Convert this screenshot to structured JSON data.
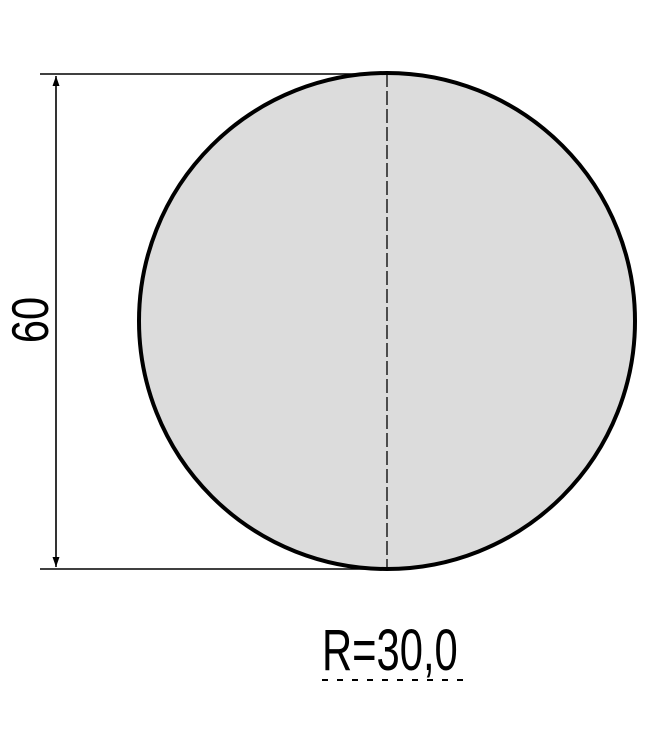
{
  "diagram": {
    "height_dimension": "60",
    "radius_label": "R=30,0",
    "fill_color": "#dcdcdc",
    "stroke_color": "#000000"
  }
}
